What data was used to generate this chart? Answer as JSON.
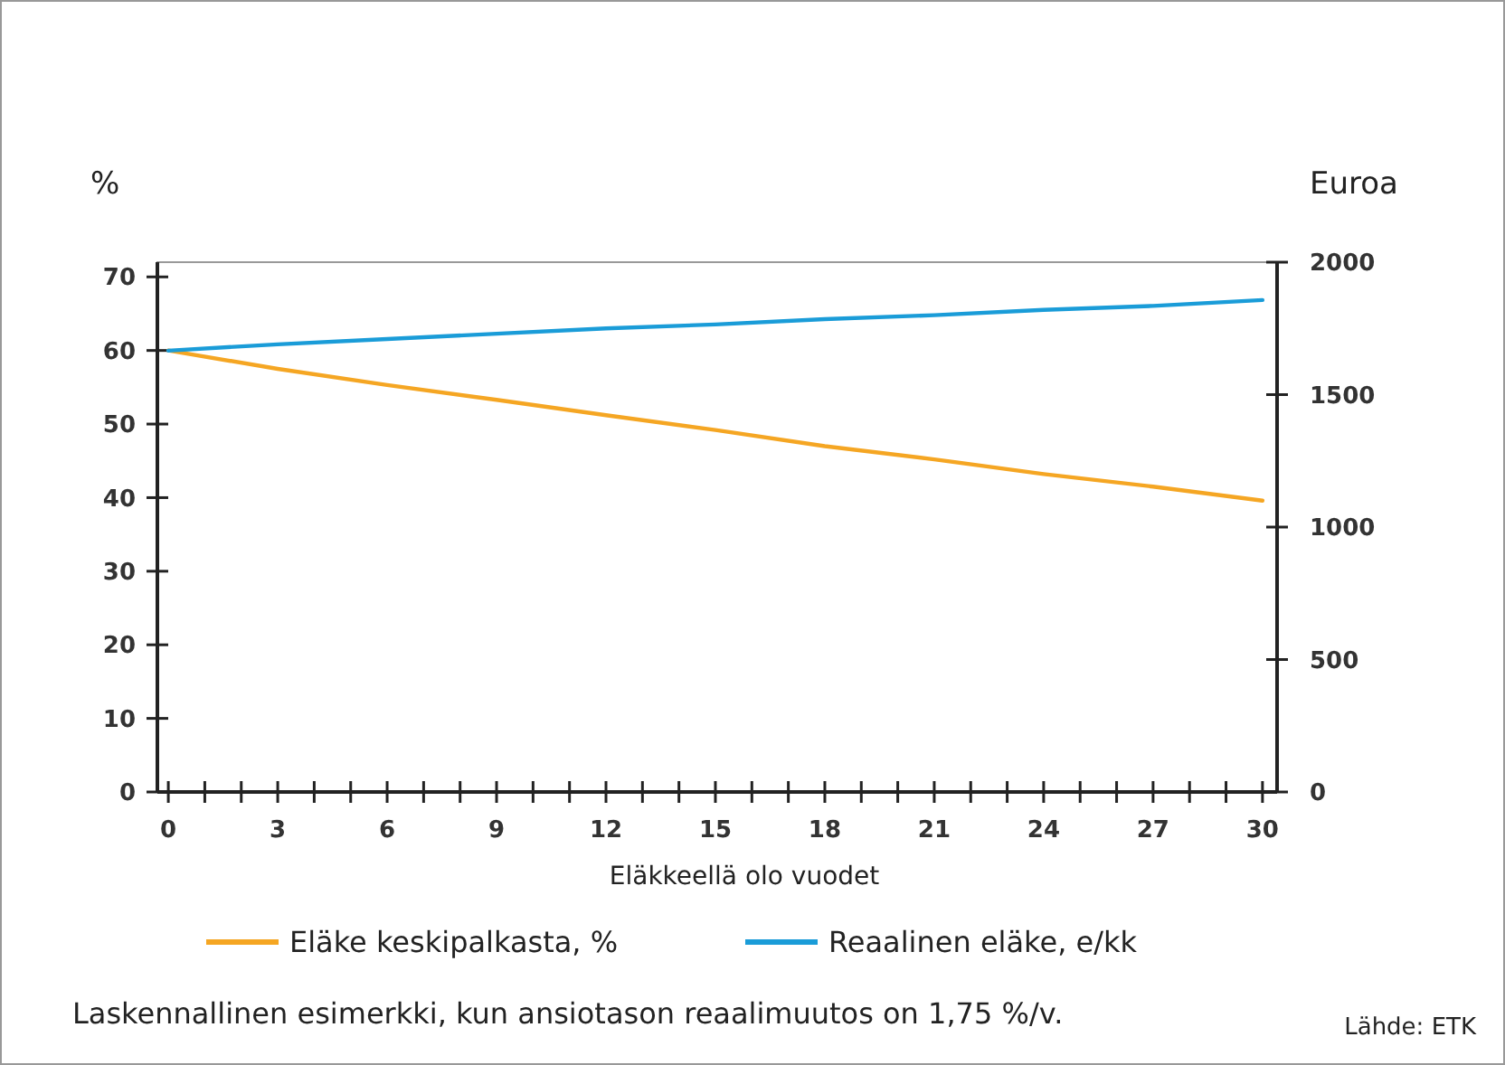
{
  "chart_data": {
    "type": "line",
    "xlabel": "Eläkkeellä olo vuodet",
    "ylabel": "%",
    "y2label": "Euroa",
    "x": [
      0,
      3,
      6,
      9,
      12,
      15,
      18,
      21,
      24,
      27,
      30
    ],
    "xlim": [
      -0.3,
      30.4
    ],
    "xticks": [
      0,
      {
        "value": 1,
        "label": null
      },
      {
        "value": 2,
        "label": null
      },
      3,
      {
        "value": 4,
        "label": null
      },
      {
        "value": 5,
        "label": null
      },
      6,
      {
        "value": 7,
        "label": null
      },
      {
        "value": 8,
        "label": null
      },
      9,
      {
        "value": 10,
        "label": null
      },
      {
        "value": 11,
        "label": null
      },
      12,
      {
        "value": 13,
        "label": null
      },
      {
        "value": 14,
        "label": null
      },
      15,
      {
        "value": 16,
        "label": null
      },
      {
        "value": 17,
        "label": null
      },
      18,
      {
        "value": 19,
        "label": null
      },
      {
        "value": 20,
        "label": null
      },
      21,
      {
        "value": 22,
        "label": null
      },
      {
        "value": 23,
        "label": null
      },
      24,
      {
        "value": 25,
        "label": null
      },
      {
        "value": 26,
        "label": null
      },
      27,
      {
        "value": 28,
        "label": null
      },
      {
        "value": 29,
        "label": null
      },
      30
    ],
    "ylim": [
      0,
      72
    ],
    "yticks": [
      0,
      10,
      20,
      30,
      40,
      50,
      60,
      70
    ],
    "y2lim": [
      0,
      2000
    ],
    "y2ticks": [
      0,
      500,
      1000,
      1500,
      2000
    ],
    "series": [
      {
        "name": "Eläke keskipalkasta, %",
        "color": "#f5a623",
        "values": [
          60,
          57.5,
          55.3,
          53.3,
          51.2,
          49.2,
          47,
          45.2,
          43.2,
          41.5,
          39.6
        ]
      },
      {
        "name": "Reaalinen eläke, e/kk",
        "color": "#1a9cd8",
        "axis": "y2",
        "values": [
          1666,
          1690,
          1710,
          1730,
          1750,
          1765,
          1785,
          1800,
          1820,
          1835,
          1857
        ]
      }
    ],
    "legend": "bottom",
    "grid": false,
    "marker": "none",
    "line_style": "solid",
    "annotations": [
      "Laskennallinen esimerkki, kun ansiotason reaalimuutos on 1,75 %/v.",
      "Lähde: ETK"
    ]
  }
}
